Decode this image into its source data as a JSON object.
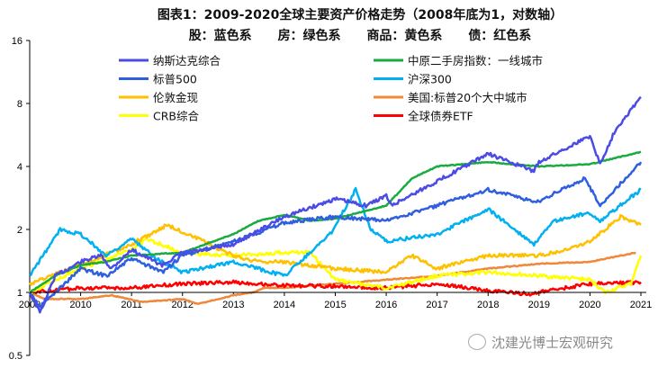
{
  "chart_data": {
    "type": "line",
    "title": "图表1：2009-2020全球主要资产价格走势（2008年底为1，对数轴）",
    "subtitle": [
      "股：蓝色系",
      "房：绿色系",
      "商品：黄色系",
      "债：红色系"
    ],
    "xlabel": "",
    "ylabel": "",
    "y_scale": "log2",
    "ylim": [
      0.5,
      16
    ],
    "y_ticks": [
      "16",
      "8",
      "4",
      "2",
      "1",
      "0.5"
    ],
    "y_tick_values": [
      16,
      8,
      4,
      2,
      1,
      0.5
    ],
    "xlim": [
      2009,
      2021
    ],
    "x_ticks": [
      "2009",
      "2010",
      "2011",
      "2012",
      "2013",
      "2014",
      "2015",
      "2016",
      "2017",
      "2018",
      "2019",
      "2020",
      "2021"
    ],
    "legend_position": "top",
    "series": [
      {
        "name": "纳斯达克综合",
        "color": "#4b4be6",
        "points": [
          [
            2009,
            1
          ],
          [
            2009.2,
            0.8
          ],
          [
            2009.5,
            1.2
          ],
          [
            2010,
            1.4
          ],
          [
            2010.4,
            1.5
          ],
          [
            2010.6,
            1.3
          ],
          [
            2011,
            1.6
          ],
          [
            2011.6,
            1.35
          ],
          [
            2012,
            1.55
          ],
          [
            2012.5,
            1.6
          ],
          [
            2013,
            1.7
          ],
          [
            2014,
            2.3
          ],
          [
            2015,
            2.8
          ],
          [
            2015.6,
            2.6
          ],
          [
            2016,
            2.9
          ],
          [
            2016.1,
            2.6
          ],
          [
            2017,
            3.4
          ],
          [
            2018,
            4.6
          ],
          [
            2018.9,
            3.8
          ],
          [
            2019,
            4.2
          ],
          [
            2020,
            5.6
          ],
          [
            2020.2,
            4.1
          ],
          [
            2020.5,
            6.0
          ],
          [
            2021,
            8.6
          ]
        ]
      },
      {
        "name": "中原二手房指数：一线城市",
        "color": "#1aab40",
        "points": [
          [
            2009,
            1
          ],
          [
            2009.5,
            1.2
          ],
          [
            2010,
            1.35
          ],
          [
            2010.5,
            1.4
          ],
          [
            2011,
            1.5
          ],
          [
            2012,
            1.55
          ],
          [
            2013,
            1.9
          ],
          [
            2013.5,
            2.2
          ],
          [
            2014,
            2.35
          ],
          [
            2014.5,
            2.2
          ],
          [
            2015,
            2.25
          ],
          [
            2016,
            2.6
          ],
          [
            2016.5,
            3.5
          ],
          [
            2017,
            4.0
          ],
          [
            2018,
            4.2
          ],
          [
            2019,
            4.0
          ],
          [
            2020,
            4.1
          ],
          [
            2021,
            4.7
          ]
        ]
      },
      {
        "name": "标普500",
        "color": "#2f5fe0",
        "points": [
          [
            2009,
            1
          ],
          [
            2009.2,
            0.85
          ],
          [
            2010,
            1.3
          ],
          [
            2010.5,
            1.2
          ],
          [
            2011,
            1.45
          ],
          [
            2011.6,
            1.25
          ],
          [
            2012,
            1.5
          ],
          [
            2013,
            1.75
          ],
          [
            2014,
            2.15
          ],
          [
            2015,
            2.3
          ],
          [
            2016,
            2.2
          ],
          [
            2017,
            2.6
          ],
          [
            2018,
            3.1
          ],
          [
            2018.95,
            2.7
          ],
          [
            2019.9,
            3.5
          ],
          [
            2020.2,
            2.6
          ],
          [
            2021,
            4.2
          ]
        ]
      },
      {
        "name": "沪深300",
        "color": "#00b0f0",
        "points": [
          [
            2009,
            1.2
          ],
          [
            2009.6,
            2.0
          ],
          [
            2010,
            1.9
          ],
          [
            2010.5,
            1.5
          ],
          [
            2011,
            1.8
          ],
          [
            2011.5,
            1.45
          ],
          [
            2012,
            1.25
          ],
          [
            2013,
            1.4
          ],
          [
            2014,
            1.2
          ],
          [
            2014.9,
            1.9
          ],
          [
            2015.4,
            3.1
          ],
          [
            2015.7,
            2.0
          ],
          [
            2016,
            1.75
          ],
          [
            2017,
            1.9
          ],
          [
            2018,
            2.5
          ],
          [
            2018.9,
            1.7
          ],
          [
            2019.3,
            2.2
          ],
          [
            2020,
            2.4
          ],
          [
            2020.2,
            2.2
          ],
          [
            2021,
            3.1
          ]
        ]
      },
      {
        "name": "伦敦金现",
        "color": "#ffc000",
        "points": [
          [
            2009,
            1.1
          ],
          [
            2010,
            1.35
          ],
          [
            2011,
            1.7
          ],
          [
            2011.7,
            2.1
          ],
          [
            2012,
            1.95
          ],
          [
            2013,
            1.5
          ],
          [
            2013.5,
            1.4
          ],
          [
            2014,
            1.4
          ],
          [
            2015,
            1.3
          ],
          [
            2016,
            1.25
          ],
          [
            2016.5,
            1.5
          ],
          [
            2017,
            1.3
          ],
          [
            2018,
            1.5
          ],
          [
            2019,
            1.5
          ],
          [
            2019.5,
            1.6
          ],
          [
            2020,
            1.75
          ],
          [
            2020.6,
            2.3
          ],
          [
            2021,
            2.1
          ]
        ]
      },
      {
        "name": "美国:标普20个大中城市",
        "color": "#f0883a",
        "points": [
          [
            2009,
            1
          ],
          [
            2009.3,
            0.93
          ],
          [
            2010,
            0.93
          ],
          [
            2010.6,
            0.97
          ],
          [
            2011.2,
            0.9
          ],
          [
            2012,
            0.93
          ],
          [
            2012.3,
            0.88
          ],
          [
            2013,
            0.97
          ],
          [
            2013.4,
            1.0
          ],
          [
            2013.6,
            1.05
          ],
          [
            2014,
            1.05
          ],
          [
            2015,
            1.1
          ],
          [
            2016,
            1.15
          ],
          [
            2017,
            1.2
          ],
          [
            2018,
            1.3
          ],
          [
            2019,
            1.37
          ],
          [
            2020,
            1.4
          ],
          [
            2020.9,
            1.55
          ]
        ]
      },
      {
        "name": "CRB综合",
        "color": "#ffff00",
        "points": [
          [
            2009,
            1
          ],
          [
            2010,
            1.3
          ],
          [
            2011,
            1.6
          ],
          [
            2011.3,
            1.8
          ],
          [
            2012,
            1.55
          ],
          [
            2013,
            1.5
          ],
          [
            2014,
            1.55
          ],
          [
            2014.5,
            1.55
          ],
          [
            2015,
            1.15
          ],
          [
            2016,
            1.05
          ],
          [
            2017,
            1.2
          ],
          [
            2018,
            1.25
          ],
          [
            2019,
            1.2
          ],
          [
            2020,
            1.15
          ],
          [
            2020.3,
            1.0
          ],
          [
            2020.8,
            1.1
          ],
          [
            2021,
            1.5
          ]
        ]
      },
      {
        "name": "全球债券ETF",
        "color": "#ff0000",
        "points": [
          [
            2009,
            1
          ],
          [
            2010,
            1.05
          ],
          [
            2011,
            1.05
          ],
          [
            2012,
            1.1
          ],
          [
            2013,
            1.12
          ],
          [
            2014,
            1.08
          ],
          [
            2015,
            1.07
          ],
          [
            2016,
            1.05
          ],
          [
            2017,
            1.1
          ],
          [
            2018,
            1.02
          ],
          [
            2018.9,
            0.98
          ],
          [
            2019,
            1.0
          ],
          [
            2020,
            1.1
          ],
          [
            2021,
            1.12
          ]
        ]
      }
    ]
  },
  "watermark": "沈建光博士宏观研究"
}
